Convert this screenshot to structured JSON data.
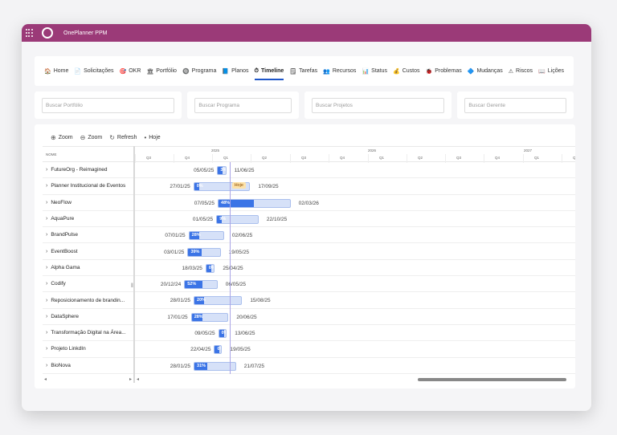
{
  "app": {
    "title": "OnePlanner PPM"
  },
  "nav": [
    {
      "icon": "home-icon",
      "glyph": "🏠",
      "label": "Home"
    },
    {
      "icon": "document-icon",
      "glyph": "📄",
      "label": "Solicitações"
    },
    {
      "icon": "target-icon",
      "glyph": "🎯",
      "label": "OKR"
    },
    {
      "icon": "building-icon",
      "glyph": "🏛",
      "label": "Portfólio"
    },
    {
      "icon": "program-icon",
      "glyph": "🔘",
      "label": "Programa"
    },
    {
      "icon": "plans-icon",
      "glyph": "📘",
      "label": "Planos"
    },
    {
      "icon": "timeline-icon",
      "glyph": "⏱",
      "label": "Timeline",
      "active": true
    },
    {
      "icon": "tasks-icon",
      "glyph": "🗒",
      "label": "Tarefas"
    },
    {
      "icon": "resources-icon",
      "glyph": "👥",
      "label": "Recursos"
    },
    {
      "icon": "status-icon",
      "glyph": "📊",
      "label": "Status"
    },
    {
      "icon": "costs-icon",
      "glyph": "💰",
      "label": "Custos"
    },
    {
      "icon": "problems-icon",
      "glyph": "🐞",
      "label": "Problemas"
    },
    {
      "icon": "changes-icon",
      "glyph": "🔷",
      "label": "Mudanças"
    },
    {
      "icon": "risks-icon",
      "glyph": "⚠",
      "label": "Riscos"
    },
    {
      "icon": "lessons-icon",
      "glyph": "📖",
      "label": "Lições"
    }
  ],
  "filters": {
    "portfolio": "Buscar Portfólio",
    "programa": "Buscar Programa",
    "projetos": "Buscar Projetos",
    "gerente": "Buscar Gerente"
  },
  "toolbar": {
    "zoom_in": "Zoom",
    "zoom_out": "Zoom",
    "refresh": "Refresh",
    "today": "Hoje"
  },
  "grid": {
    "name_header": "NOME"
  },
  "timeline_header": {
    "years": [
      "2025",
      "2026",
      "2027"
    ],
    "quarters": [
      "Q3",
      "Q4",
      "Q1",
      "Q2",
      "Q3",
      "Q4",
      "Q1",
      "Q2",
      "Q3",
      "Q4",
      "Q1",
      "Q2"
    ]
  },
  "today_label": "Hoje",
  "projects": [
    {
      "name": "FutureOrg - Reimagined",
      "start": "05/05/25",
      "end": "11/06/25",
      "progress": 3
    },
    {
      "name": "Planner Institucional de Eventos",
      "start": "27/01/25",
      "end": "17/09/25",
      "progress": 0
    },
    {
      "name": "NeoFlow",
      "start": "07/05/25",
      "end": "02/03/26",
      "progress": 48
    },
    {
      "name": "AquaPure",
      "start": "01/05/25",
      "end": "22/10/25",
      "progress": 9
    },
    {
      "name": "BrandPulse",
      "start": "07/01/25",
      "end": "02/06/25",
      "progress": 28
    },
    {
      "name": "EventBoost",
      "start": "03/01/25",
      "end": "19/05/25",
      "progress": 39
    },
    {
      "name": "Alpha Gama",
      "start": "18/03/25",
      "end": "25/04/25",
      "progress": 0
    },
    {
      "name": "Codify",
      "start": "20/12/24",
      "end": "06/05/25",
      "progress": 52
    },
    {
      "name": "Reposicionamento de brandin...",
      "start": "28/01/25",
      "end": "15/08/25",
      "progress": 20
    },
    {
      "name": "DataSphere",
      "start": "17/01/25",
      "end": "20/06/25",
      "progress": 28
    },
    {
      "name": "Transformação Digital na Área...",
      "start": "09/05/25",
      "end": "13/06/25",
      "progress": 0
    },
    {
      "name": "Projeto LinkdIn",
      "start": "22/04/25",
      "end": "19/05/25",
      "progress": 0
    },
    {
      "name": "BioNova",
      "start": "28/01/25",
      "end": "21/07/25",
      "progress": 31
    }
  ],
  "progress_labels": [
    "3%",
    "0%",
    "48%",
    "9%",
    "28%",
    "39%",
    "0%",
    "52%",
    "20%",
    "28%",
    "0%",
    "0%",
    "31%"
  ],
  "colors": {
    "titlebar": "#9b3a78",
    "bar_fill": "#3b74e6",
    "bar_bg": "#d6e1f8",
    "today": "#a9a4e6"
  }
}
